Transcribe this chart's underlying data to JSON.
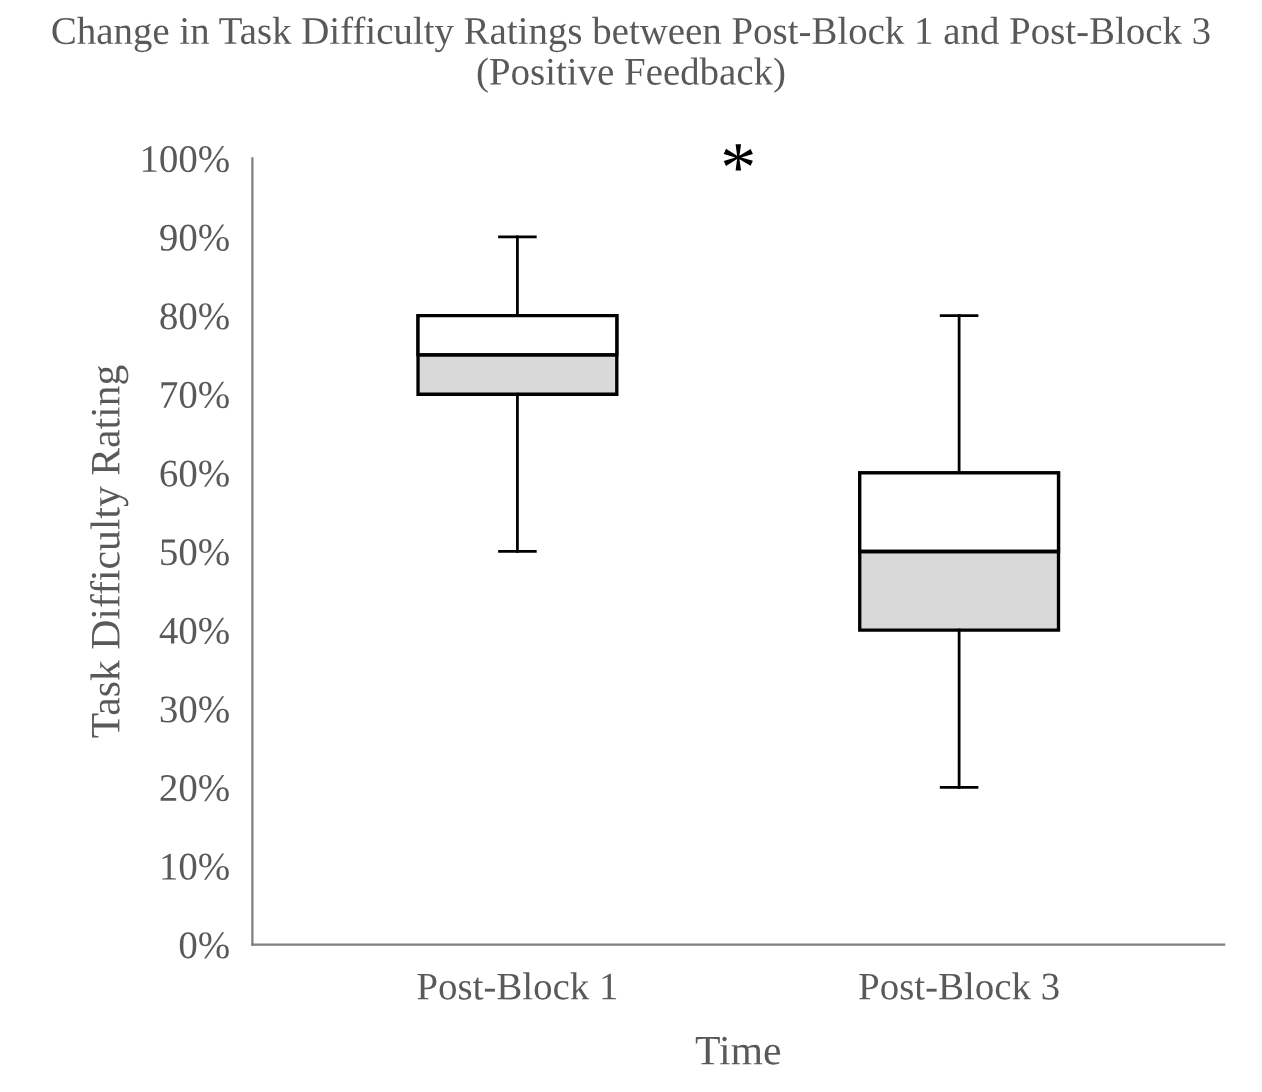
{
  "chart_data": {
    "type": "box",
    "title": "Change in Task Difficulty Ratings between Post-Block 1 and Post-Block 3 (Positive Feedback)",
    "xlabel": "Time",
    "ylabel": "Task Difficulty Rating",
    "categories": [
      "Post-Block 1",
      "Post-Block 3"
    ],
    "boxes": [
      {
        "low": 50,
        "q1": 70,
        "median": 75,
        "q3": 80,
        "high": 90
      },
      {
        "low": 20,
        "q1": 40,
        "median": 50,
        "q3": 60,
        "high": 80
      }
    ],
    "colors": [
      "#d9d9d9",
      "#d9d9d9"
    ],
    "annotations": [
      "*"
    ],
    "ylim": [
      0,
      100
    ],
    "yticks": [
      {
        "value": 0,
        "label": "0%"
      },
      {
        "value": 10,
        "label": "10%"
      },
      {
        "value": 20,
        "label": "20%"
      },
      {
        "value": 30,
        "label": "30%"
      },
      {
        "value": 40,
        "label": "40%"
      },
      {
        "value": 50,
        "label": "50%"
      },
      {
        "value": 60,
        "label": "60%"
      },
      {
        "value": 70,
        "label": "70%"
      },
      {
        "value": 80,
        "label": "80%"
      },
      {
        "value": 90,
        "label": "90%"
      },
      {
        "value": 100,
        "label": "100%"
      }
    ],
    "grid": false,
    "legend": false
  }
}
